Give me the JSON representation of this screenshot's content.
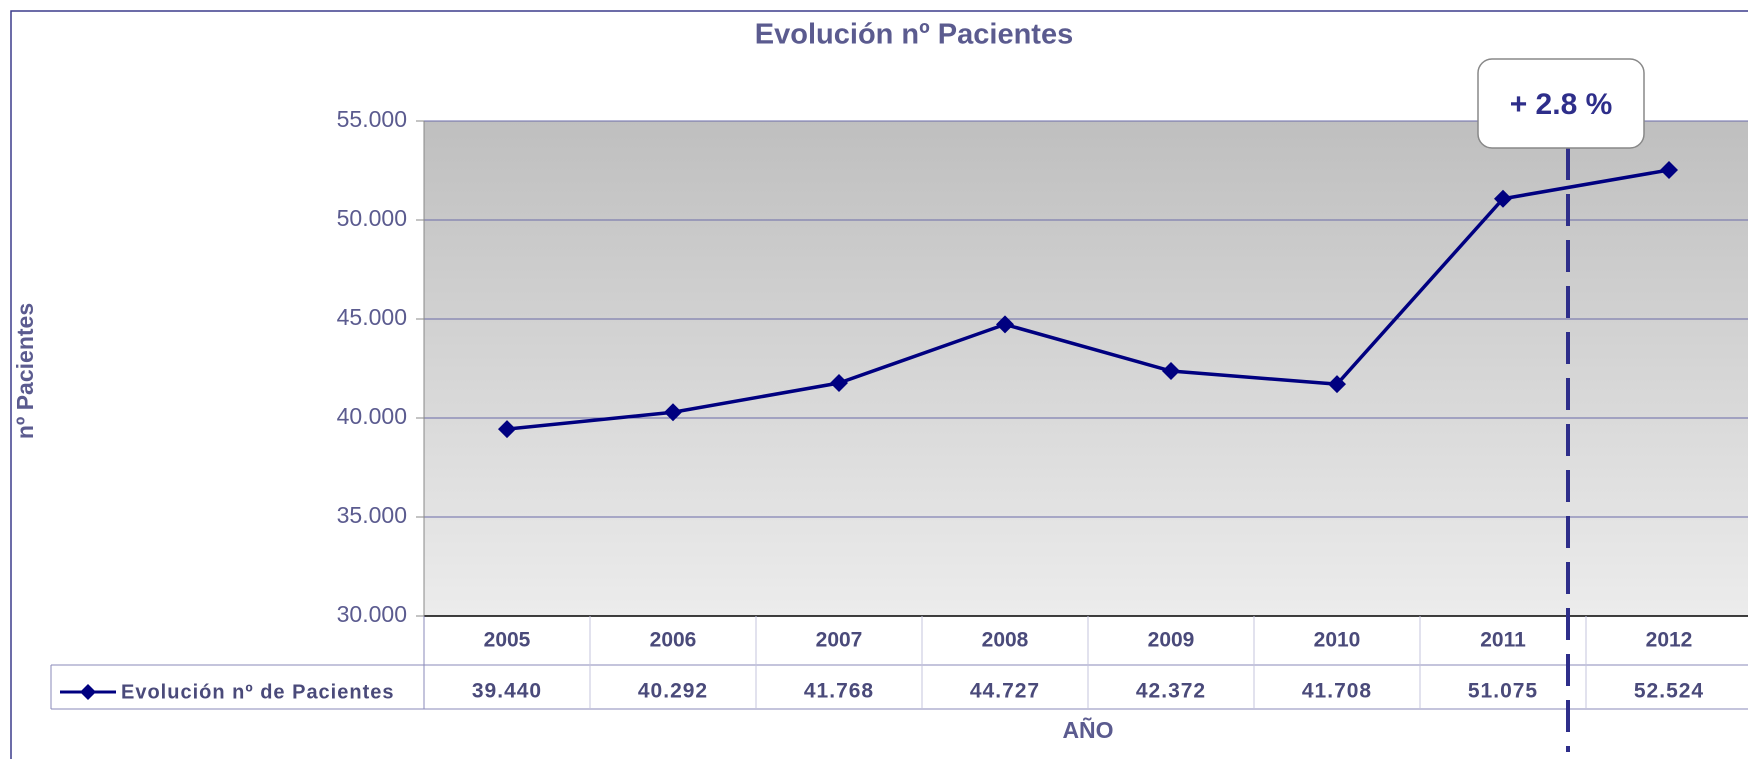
{
  "chart_data": {
    "type": "line",
    "title": "Evolución nº Pacientes",
    "y_label": "nº Pacientes",
    "x_label": "AÑO",
    "categories": [
      "2005",
      "2006",
      "2007",
      "2008",
      "2009",
      "2010",
      "2011",
      "2012"
    ],
    "series": [
      {
        "name": "Evolución nº de Pacientes",
        "color": "#000080",
        "values": [
          39440,
          40292,
          41768,
          44727,
          42372,
          41708,
          51075,
          52524
        ],
        "value_labels": [
          "39.440",
          "40.292",
          "41.768",
          "44.727",
          "42.372",
          "41.708",
          "51.075",
          "52.524"
        ]
      }
    ],
    "ylim": [
      30000,
      55000
    ],
    "yticks": [
      {
        "value": 30000,
        "label": "30.000"
      },
      {
        "value": 35000,
        "label": "35.000"
      },
      {
        "value": 40000,
        "label": "40.000"
      },
      {
        "value": 45000,
        "label": "45.000"
      },
      {
        "value": 50000,
        "label": "50.000"
      },
      {
        "value": 55000,
        "label": "55.000"
      }
    ],
    "grid": true,
    "annotation": "+ 2.8 %"
  }
}
